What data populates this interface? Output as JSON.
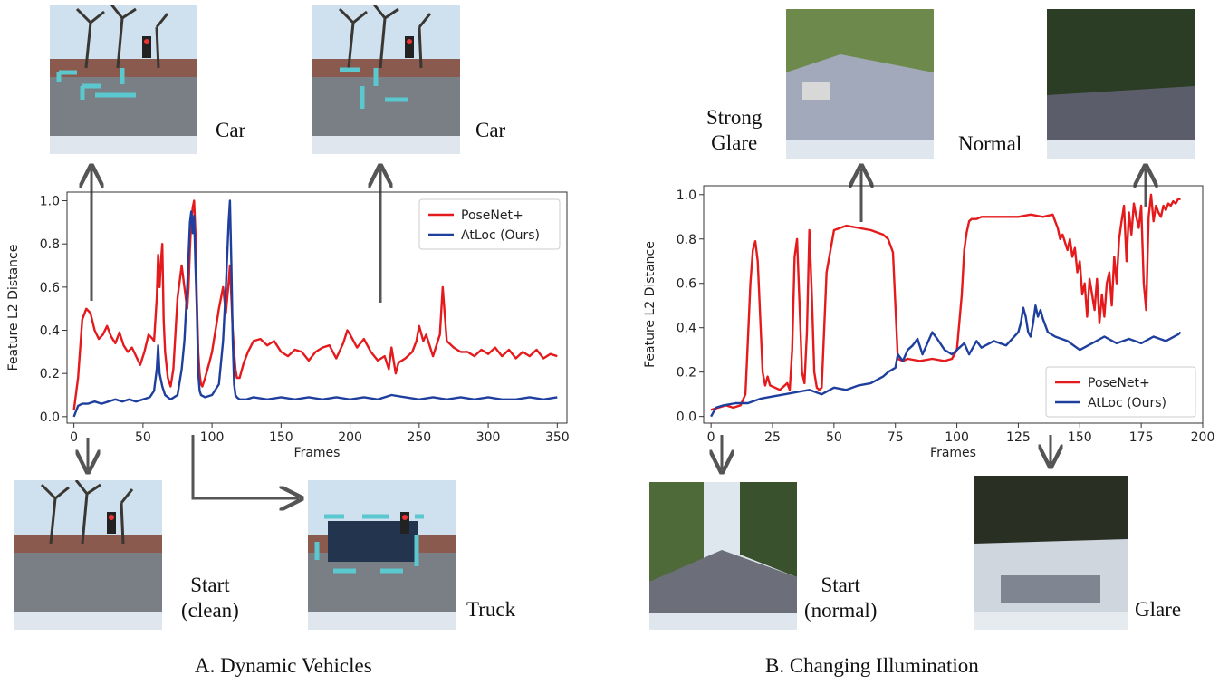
{
  "figure": {
    "caption_a": "A. Dynamic Vehicles",
    "caption_b": "B. Changing Illumination",
    "labels_a": {
      "top_left": "Car",
      "top_right": "Car",
      "bottom_left": "Start\n(clean)",
      "bottom_right": "Truck"
    },
    "labels_b": {
      "top_left": "Strong\nGlare",
      "top_right": "Normal",
      "bottom_left": "Start\n(normal)",
      "bottom_right": "Glare"
    }
  },
  "colors": {
    "posenet": "#e41a1c",
    "atloc": "#1f3f9e",
    "box": "#5bc8d0",
    "arrow": "#555555"
  },
  "chart_data": [
    {
      "type": "line",
      "xlabel": "Frames",
      "ylabel": "Feature L2 Distance",
      "xlim": [
        -5,
        357
      ],
      "ylim": [
        -0.03,
        1.04
      ],
      "xticks": [
        0,
        50,
        100,
        150,
        200,
        250,
        300,
        350
      ],
      "yticks": [
        0.0,
        0.2,
        0.4,
        0.6,
        0.8,
        1.0
      ],
      "ytick_labels": [
        "0.0",
        "0.2",
        "0.4",
        "0.6",
        "0.8",
        "1.0"
      ],
      "legend_position": "top-right",
      "series": [
        {
          "name": "PoseNet+",
          "color": "#e41a1c",
          "x": [
            0,
            3,
            6,
            9,
            12,
            15,
            18,
            21,
            24,
            27,
            30,
            33,
            36,
            39,
            42,
            45,
            48,
            51,
            54,
            57,
            58,
            60,
            61,
            62,
            63,
            64,
            65,
            66,
            68,
            70,
            72,
            75,
            78,
            80,
            82,
            83,
            84,
            85,
            86,
            87,
            88,
            89,
            90,
            91,
            92,
            93,
            95,
            98,
            100,
            103,
            105,
            108,
            110,
            111,
            112,
            113,
            114,
            115,
            116,
            117,
            118,
            120,
            123,
            126,
            130,
            135,
            140,
            145,
            150,
            155,
            160,
            165,
            170,
            175,
            180,
            185,
            190,
            195,
            198,
            200,
            205,
            210,
            215,
            220,
            225,
            228,
            230,
            233,
            235,
            240,
            245,
            248,
            250,
            253,
            255,
            260,
            265,
            267,
            270,
            275,
            280,
            285,
            290,
            295,
            300,
            305,
            310,
            315,
            320,
            325,
            330,
            335,
            340,
            345,
            350
          ],
          "y": [
            0.03,
            0.18,
            0.45,
            0.5,
            0.48,
            0.4,
            0.36,
            0.38,
            0.42,
            0.37,
            0.34,
            0.39,
            0.33,
            0.3,
            0.32,
            0.28,
            0.24,
            0.3,
            0.38,
            0.36,
            0.35,
            0.55,
            0.75,
            0.6,
            0.72,
            0.8,
            0.45,
            0.3,
            0.18,
            0.14,
            0.22,
            0.55,
            0.7,
            0.6,
            0.5,
            0.6,
            0.78,
            0.9,
            0.97,
            1.0,
            0.85,
            0.55,
            0.3,
            0.2,
            0.15,
            0.14,
            0.18,
            0.25,
            0.3,
            0.42,
            0.5,
            0.6,
            0.48,
            0.55,
            0.62,
            0.7,
            0.55,
            0.4,
            0.3,
            0.22,
            0.18,
            0.18,
            0.25,
            0.3,
            0.35,
            0.36,
            0.33,
            0.35,
            0.3,
            0.28,
            0.31,
            0.3,
            0.26,
            0.3,
            0.32,
            0.33,
            0.27,
            0.34,
            0.4,
            0.38,
            0.32,
            0.36,
            0.3,
            0.26,
            0.28,
            0.22,
            0.32,
            0.2,
            0.25,
            0.27,
            0.3,
            0.35,
            0.42,
            0.35,
            0.38,
            0.28,
            0.38,
            0.6,
            0.35,
            0.32,
            0.3,
            0.3,
            0.28,
            0.31,
            0.29,
            0.32,
            0.28,
            0.31,
            0.27,
            0.3,
            0.28,
            0.31,
            0.27,
            0.29,
            0.28
          ]
        },
        {
          "name": "AtLoc (Ours)",
          "color": "#1f3f9e",
          "x": [
            0,
            3,
            6,
            10,
            15,
            20,
            25,
            30,
            35,
            40,
            45,
            50,
            55,
            58,
            60,
            61,
            62,
            64,
            66,
            70,
            75,
            78,
            80,
            82,
            83,
            84,
            85,
            86,
            87,
            88,
            89,
            90,
            91,
            92,
            95,
            100,
            105,
            108,
            110,
            111,
            112,
            113,
            114,
            115,
            116,
            117,
            118,
            120,
            125,
            130,
            140,
            150,
            160,
            170,
            180,
            190,
            200,
            210,
            220,
            230,
            240,
            250,
            260,
            270,
            280,
            290,
            300,
            310,
            320,
            330,
            340,
            350
          ],
          "y": [
            0.0,
            0.05,
            0.06,
            0.06,
            0.07,
            0.06,
            0.07,
            0.08,
            0.07,
            0.08,
            0.07,
            0.08,
            0.09,
            0.12,
            0.22,
            0.33,
            0.2,
            0.14,
            0.1,
            0.08,
            0.1,
            0.22,
            0.35,
            0.6,
            0.75,
            0.9,
            0.95,
            0.85,
            0.93,
            0.7,
            0.5,
            0.2,
            0.12,
            0.1,
            0.09,
            0.1,
            0.15,
            0.35,
            0.6,
            0.75,
            0.9,
            1.0,
            0.7,
            0.35,
            0.15,
            0.1,
            0.09,
            0.08,
            0.08,
            0.09,
            0.08,
            0.09,
            0.08,
            0.09,
            0.08,
            0.09,
            0.08,
            0.09,
            0.08,
            0.1,
            0.09,
            0.08,
            0.09,
            0.08,
            0.09,
            0.08,
            0.09,
            0.08,
            0.08,
            0.09,
            0.08,
            0.09
          ]
        }
      ]
    },
    {
      "type": "line",
      "xlabel": "Frames",
      "ylabel": "Feature L2 Distance",
      "xlim": [
        -3,
        200
      ],
      "ylim": [
        -0.03,
        1.04
      ],
      "xticks": [
        0,
        25,
        50,
        75,
        100,
        125,
        150,
        175,
        200
      ],
      "yticks": [
        0.0,
        0.2,
        0.4,
        0.6,
        0.8,
        1.0
      ],
      "ytick_labels": [
        "0.0",
        "0.2",
        "0.4",
        "0.6",
        "0.8",
        "1.0"
      ],
      "legend_position": "lower-right",
      "series": [
        {
          "name": "PoseNet+",
          "color": "#e41a1c",
          "x": [
            0,
            3,
            6,
            9,
            12,
            14,
            15,
            16,
            17,
            18,
            19,
            20,
            21,
            22,
            23,
            24,
            26,
            28,
            30,
            31,
            32,
            33,
            34,
            35,
            36,
            37,
            38,
            39,
            40,
            41,
            42,
            43,
            44,
            45,
            47,
            50,
            55,
            60,
            65,
            70,
            72,
            74,
            75,
            76,
            78,
            80,
            85,
            90,
            95,
            98,
            100,
            102,
            103,
            104,
            105,
            106,
            108,
            110,
            115,
            120,
            125,
            130,
            135,
            139,
            140,
            141,
            142,
            143,
            145,
            146,
            147,
            148,
            149,
            150,
            151,
            152,
            153,
            154,
            155,
            156,
            157,
            158,
            159,
            160,
            161,
            162,
            163,
            164,
            165,
            166,
            167,
            168,
            169,
            170,
            171,
            172,
            173,
            174,
            175,
            176,
            177,
            178,
            179,
            180,
            181,
            182,
            183,
            184,
            185,
            186,
            187,
            188,
            189,
            190,
            191
          ],
          "y": [
            0.03,
            0.04,
            0.05,
            0.04,
            0.05,
            0.1,
            0.35,
            0.6,
            0.75,
            0.79,
            0.7,
            0.45,
            0.2,
            0.14,
            0.18,
            0.14,
            0.13,
            0.12,
            0.14,
            0.15,
            0.12,
            0.3,
            0.72,
            0.8,
            0.5,
            0.2,
            0.15,
            0.38,
            0.84,
            0.55,
            0.2,
            0.13,
            0.12,
            0.13,
            0.65,
            0.84,
            0.86,
            0.85,
            0.84,
            0.82,
            0.8,
            0.74,
            0.5,
            0.26,
            0.25,
            0.26,
            0.25,
            0.26,
            0.25,
            0.26,
            0.3,
            0.55,
            0.75,
            0.83,
            0.88,
            0.89,
            0.89,
            0.9,
            0.9,
            0.9,
            0.9,
            0.91,
            0.9,
            0.91,
            0.88,
            0.85,
            0.8,
            0.82,
            0.75,
            0.8,
            0.72,
            0.76,
            0.65,
            0.7,
            0.55,
            0.6,
            0.45,
            0.62,
            0.55,
            0.48,
            0.62,
            0.42,
            0.55,
            0.45,
            0.6,
            0.65,
            0.5,
            0.72,
            0.6,
            0.8,
            0.88,
            0.95,
            0.7,
            0.92,
            0.82,
            0.96,
            0.9,
            0.85,
            0.95,
            0.6,
            0.48,
            0.9,
            1.0,
            0.88,
            0.95,
            0.92,
            0.9,
            0.95,
            0.93,
            0.96,
            0.95,
            0.97,
            0.96,
            0.98,
            0.98
          ]
        },
        {
          "name": "AtLoc (Ours)",
          "color": "#1f3f9e",
          "x": [
            0,
            2,
            5,
            10,
            15,
            20,
            25,
            30,
            35,
            40,
            45,
            50,
            55,
            60,
            65,
            70,
            72,
            75,
            76,
            78,
            80,
            82,
            84,
            86,
            88,
            90,
            92,
            95,
            98,
            100,
            103,
            105,
            108,
            110,
            115,
            120,
            125,
            126,
            127,
            128,
            129,
            130,
            131,
            132,
            133,
            134,
            135,
            137,
            140,
            145,
            150,
            155,
            160,
            165,
            170,
            175,
            180,
            185,
            190,
            191
          ],
          "y": [
            0.0,
            0.04,
            0.05,
            0.06,
            0.06,
            0.08,
            0.09,
            0.1,
            0.11,
            0.12,
            0.1,
            0.13,
            0.12,
            0.14,
            0.15,
            0.18,
            0.2,
            0.22,
            0.28,
            0.25,
            0.3,
            0.32,
            0.35,
            0.28,
            0.33,
            0.38,
            0.35,
            0.3,
            0.28,
            0.3,
            0.33,
            0.28,
            0.34,
            0.31,
            0.34,
            0.32,
            0.38,
            0.42,
            0.49,
            0.45,
            0.38,
            0.36,
            0.42,
            0.5,
            0.45,
            0.48,
            0.44,
            0.38,
            0.36,
            0.34,
            0.3,
            0.33,
            0.36,
            0.33,
            0.35,
            0.33,
            0.36,
            0.34,
            0.37,
            0.38
          ]
        }
      ]
    }
  ]
}
